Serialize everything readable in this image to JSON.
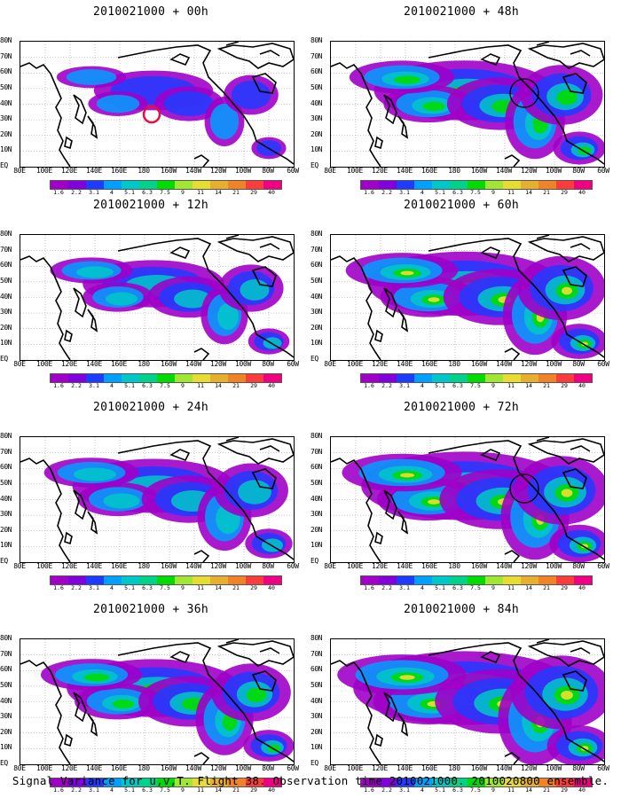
{
  "panels": [
    {
      "title": "2010021000 + 00h",
      "intensity": 0.28,
      "marker": "red-circle"
    },
    {
      "title": "2010021000 + 12h",
      "intensity": 0.42,
      "marker": "none"
    },
    {
      "title": "2010021000 + 24h",
      "intensity": 0.55,
      "marker": "none"
    },
    {
      "title": "2010021000 + 36h",
      "intensity": 0.62,
      "marker": "none"
    },
    {
      "title": "2010021000 + 48h",
      "intensity": 0.66,
      "marker": "black-circle"
    },
    {
      "title": "2010021000 + 60h",
      "intensity": 0.74,
      "marker": "none"
    },
    {
      "title": "2010021000 + 72h",
      "intensity": 0.82,
      "marker": "black-circle"
    },
    {
      "title": "2010021000 + 84h",
      "intensity": 0.92,
      "marker": "none"
    }
  ],
  "latitude_labels": [
    "80N",
    "70N",
    "60N",
    "50N",
    "40N",
    "30N",
    "20N",
    "10N",
    "EQ"
  ],
  "longitude_labels": [
    "80E",
    "100E",
    "120E",
    "140E",
    "160E",
    "180",
    "160W",
    "140W",
    "120W",
    "100W",
    "80W",
    "60W"
  ],
  "colorbar": {
    "levels": [
      "1.6",
      "2.2",
      "3.1",
      "4",
      "5.1",
      "6.3",
      "7.5",
      "9",
      "11",
      "14",
      "21",
      "29",
      "40"
    ],
    "colors": [
      "#a000c8",
      "#8200dc",
      "#1e3cff",
      "#00a0ff",
      "#00c8c8",
      "#00d28c",
      "#00dc00",
      "#a0e632",
      "#e6dc32",
      "#e6af2d",
      "#f08228",
      "#fa3c3c",
      "#f00082"
    ]
  },
  "footer": "Signal Variance for u,v,T. Flight 38. Observation time 2010021000. 2010020800 ensemble."
}
